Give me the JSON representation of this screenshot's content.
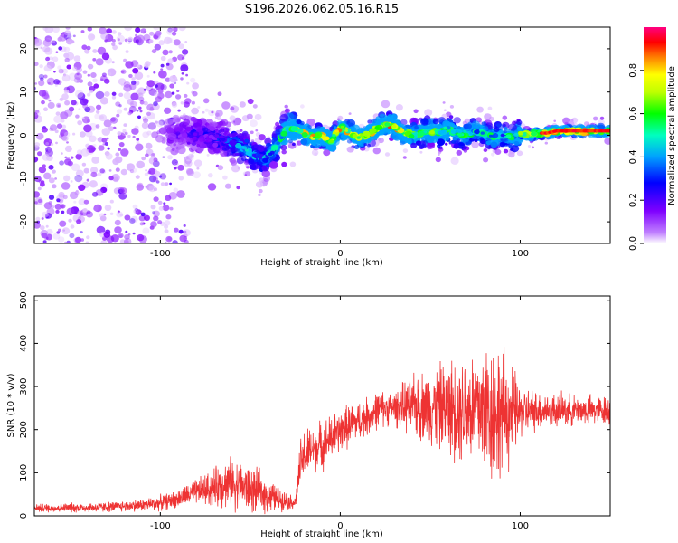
{
  "figure_title": "S196.2026.062.05.16.R15",
  "chart_data": [
    {
      "type": "heatmap",
      "panel": "spectrogram",
      "title": "S196.2026.062.05.16.R15",
      "xlabel": "Height of straight line (km)",
      "ylabel": "Frequency (Hz)",
      "xlim": [
        -170,
        150
      ],
      "ylim": [
        -25,
        25
      ],
      "x_ticks": [
        -100,
        0,
        100
      ],
      "x_tick_labels": [
        "-100",
        "0",
        "100"
      ],
      "y_ticks": [
        -20,
        -10,
        0,
        10,
        20
      ],
      "y_tick_labels": [
        "-20",
        "-10",
        "0",
        "10",
        "20"
      ],
      "colorbar": {
        "label": "Normalized spectral amplitude",
        "range": [
          0.0,
          1.0
        ],
        "ticks": [
          0.0,
          0.2,
          0.4,
          0.6,
          0.8
        ],
        "tick_labels": [
          "0.0",
          "0.2",
          "0.4",
          "0.6",
          "0.8"
        ],
        "colormap": [
          "#ffffff",
          "#c080ff",
          "#7f00ff",
          "#0000ff",
          "#00c0ff",
          "#00ffa0",
          "#00ff00",
          "#c0ff00",
          "#ffff00",
          "#ff8000",
          "#ff0000",
          "#ff0080"
        ]
      },
      "ridge": {
        "x": [
          -95,
          -85,
          -75,
          -65,
          -55,
          -48,
          -42,
          -36,
          -30,
          -25,
          -20,
          -15,
          -10,
          -5,
          0,
          5,
          10,
          15,
          20,
          25,
          30,
          35,
          40,
          45,
          50,
          55,
          60,
          65,
          70,
          75,
          80,
          85,
          90,
          95,
          100,
          105,
          110,
          115,
          120,
          130,
          140,
          150
        ],
        "y": [
          0,
          0.5,
          0,
          -1,
          -2.5,
          -4.5,
          -5.5,
          -3,
          1.5,
          1.5,
          0.5,
          -0.5,
          0,
          -1.5,
          2,
          0.5,
          -0.5,
          0,
          1.5,
          2.5,
          2,
          0.5,
          0,
          0.5,
          1,
          0.5,
          1.5,
          0.5,
          0,
          1,
          0.5,
          -0.5,
          0,
          -0.5,
          0.5,
          0,
          0.5,
          0.5,
          1,
          1,
          1,
          1
        ],
        "strength": [
          0.15,
          0.2,
          0.25,
          0.3,
          0.4,
          0.4,
          0.4,
          0.45,
          0.6,
          0.65,
          0.8,
          0.8,
          0.75,
          0.7,
          0.85,
          0.75,
          0.7,
          0.7,
          0.8,
          0.85,
          0.85,
          0.7,
          0.6,
          0.6,
          0.6,
          0.6,
          0.55,
          0.55,
          0.55,
          0.5,
          0.5,
          0.5,
          0.45,
          0.55,
          0.6,
          0.65,
          0.7,
          0.75,
          0.8,
          0.85,
          0.85,
          0.85
        ]
      }
    },
    {
      "type": "line",
      "panel": "snr",
      "xlabel": "Height of straight line (km)",
      "ylabel": "SNR (10 * v/v)",
      "xlim": [
        -170,
        150
      ],
      "ylim": [
        0,
        510
      ],
      "x_ticks": [
        -100,
        0,
        100
      ],
      "x_tick_labels": [
        "-100",
        "0",
        "100"
      ],
      "y_ticks": [
        0,
        100,
        200,
        300,
        400,
        500
      ],
      "y_tick_labels": [
        "0",
        "100",
        "200",
        "300",
        "400",
        "500"
      ],
      "color": "#ee3333",
      "envelope": {
        "x": [
          -170,
          -130,
          -110,
          -100,
          -90,
          -80,
          -70,
          -65,
          -60,
          -55,
          -50,
          -45,
          -40,
          -35,
          -30,
          -25,
          -22,
          -20,
          -15,
          -10,
          -5,
          0,
          5,
          10,
          15,
          20,
          25,
          30,
          40,
          50,
          60,
          70,
          80,
          85,
          90,
          95,
          100,
          110,
          120,
          130,
          140,
          150
        ],
        "baseline": [
          18,
          20,
          25,
          30,
          40,
          55,
          65,
          75,
          75,
          70,
          60,
          55,
          45,
          40,
          35,
          30,
          120,
          140,
          155,
          165,
          180,
          195,
          210,
          220,
          230,
          245,
          250,
          250,
          255,
          255,
          250,
          250,
          250,
          240,
          240,
          240,
          240,
          245,
          245,
          245,
          245,
          245
        ],
        "spread": [
          10,
          12,
          14,
          18,
          20,
          30,
          45,
          55,
          60,
          55,
          55,
          50,
          40,
          30,
          20,
          15,
          60,
          60,
          55,
          55,
          55,
          50,
          50,
          45,
          45,
          45,
          40,
          40,
          70,
          90,
          110,
          130,
          160,
          170,
          150,
          120,
          60,
          45,
          40,
          35,
          35,
          35
        ]
      }
    }
  ]
}
